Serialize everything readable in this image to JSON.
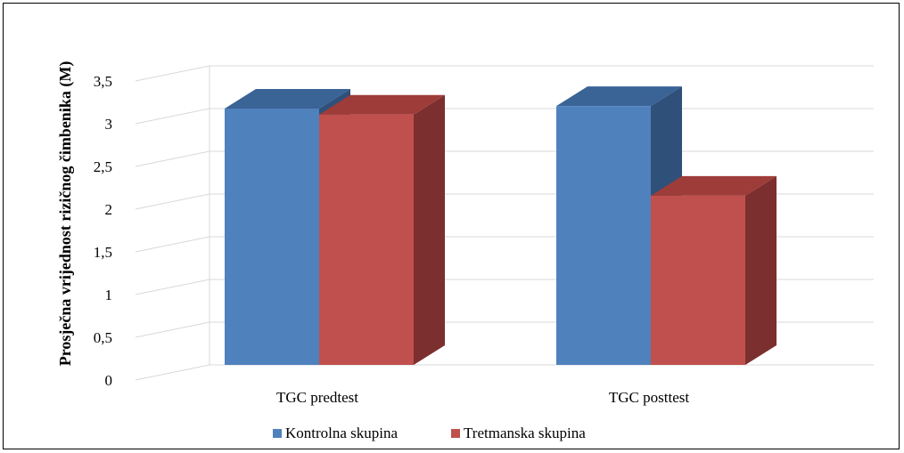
{
  "chart_data": {
    "type": "bar",
    "style": "3d-clustered-column",
    "ylabel": "Prosječna vrijednost rizičnog čimbenika (M)",
    "xlabel": "",
    "categories": [
      "TGC predtest",
      "TGC posttest"
    ],
    "series": [
      {
        "name": "Kontrolna skupina",
        "values": [
          3.0,
          3.03
        ],
        "color": "#4F81BD",
        "top_color": "#3A6396",
        "side_color": "#2F5079"
      },
      {
        "name": "Tretmanska skupina",
        "values": [
          2.93,
          1.98
        ],
        "color": "#C0504D",
        "top_color": "#9E3C39",
        "side_color": "#7B2F2E"
      }
    ],
    "yticks": [
      "0",
      "0,5",
      "1",
      "1,5",
      "2",
      "2,5",
      "3",
      "3,5"
    ],
    "ylim": [
      0,
      3.5
    ],
    "grid": true,
    "legend_position": "bottom"
  }
}
